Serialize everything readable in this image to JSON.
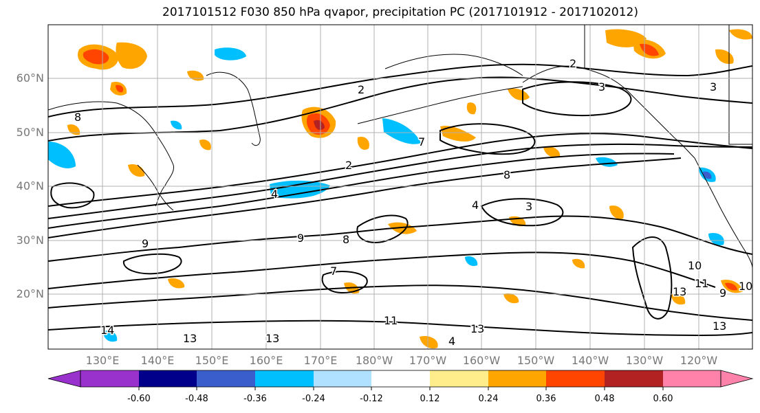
{
  "title": "2017101512 F030 850 hPa qvapor, precipitation PC (2017101912 - 2017102012)",
  "latitude_labels": [
    "60°N",
    "50°N",
    "40°N",
    "30°N",
    "20°N"
  ],
  "longitude_labels": [
    "130°E",
    "140°E",
    "150°E",
    "160°E",
    "170°E",
    "180°W",
    "170°W",
    "160°W",
    "150°W",
    "140°W",
    "130°W",
    "120°W"
  ],
  "colorbar": {
    "colors": [
      "#9932cc",
      "#00008b",
      "#3a5fcd",
      "#00bfff",
      "#b0e2ff",
      "#ffffff",
      "#ffec8b",
      "#ffa500",
      "#ff4500",
      "#b22222",
      "#ff82ab"
    ],
    "labels": [
      "-0.60",
      "-0.48",
      "-0.36",
      "-0.24",
      "-0.12",
      "0.12",
      "0.24",
      "0.36",
      "0.48",
      "0.60"
    ]
  },
  "contour_labels": [
    "2",
    "2",
    "2",
    "3",
    "3",
    "3",
    "4",
    "4",
    "4",
    "7",
    "7",
    "8",
    "8",
    "8",
    "9",
    "9",
    "9",
    "10",
    "10",
    "11",
    "11",
    "13",
    "13",
    "13",
    "13",
    "13",
    "14"
  ]
}
